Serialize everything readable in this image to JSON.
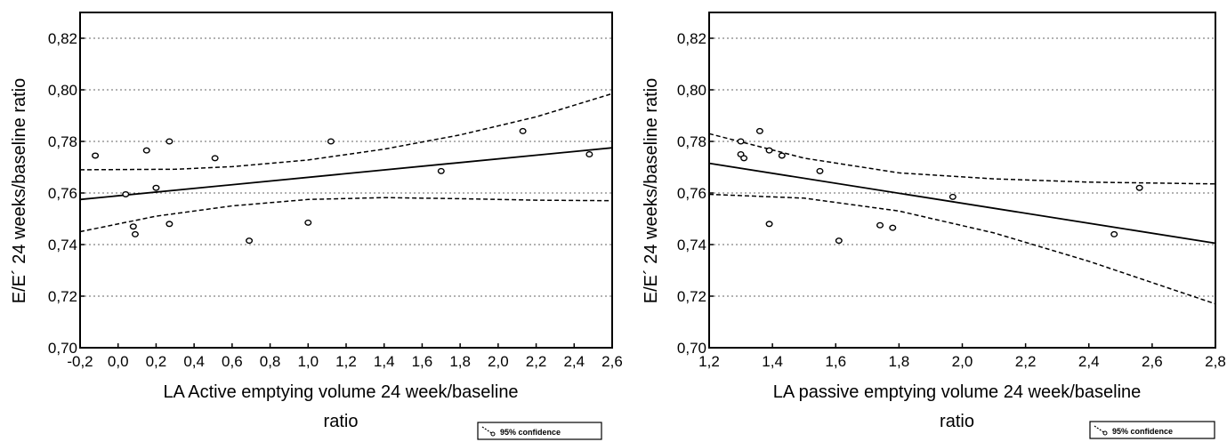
{
  "chart_data": [
    {
      "type": "scatter",
      "xlabel_line1": "LA Active emptying volume   24 week/baseline",
      "xlabel_line2": "ratio",
      "ylabel": "E/E´ 24 weeks/baseline ratio",
      "xlim": [
        -0.2,
        2.6
      ],
      "ylim": [
        0.7,
        0.83
      ],
      "x_ticks": [
        "-0,2",
        "0,0",
        "0,2",
        "0,4",
        "0,6",
        "0,8",
        "1,0",
        "1,2",
        "1,4",
        "1,6",
        "1,8",
        "2,0",
        "2,2",
        "2,4",
        "2,6"
      ],
      "x_tick_values": [
        -0.2,
        0.0,
        0.2,
        0.4,
        0.6,
        0.8,
        1.0,
        1.2,
        1.4,
        1.6,
        1.8,
        2.0,
        2.2,
        2.4,
        2.6
      ],
      "y_ticks": [
        "0,70",
        "0,72",
        "0,74",
        "0,76",
        "0,78",
        "0,80",
        "0,82"
      ],
      "y_tick_values": [
        0.7,
        0.72,
        0.74,
        0.76,
        0.78,
        0.8,
        0.82
      ],
      "grid": "horizontal-dotted",
      "legend": {
        "label": "95% confidence",
        "placement": "bottom-right"
      },
      "points": [
        {
          "x": -0.12,
          "y": 0.7745
        },
        {
          "x": 0.04,
          "y": 0.7595
        },
        {
          "x": 0.08,
          "y": 0.747
        },
        {
          "x": 0.09,
          "y": 0.744
        },
        {
          "x": 0.15,
          "y": 0.7765
        },
        {
          "x": 0.2,
          "y": 0.762
        },
        {
          "x": 0.27,
          "y": 0.78
        },
        {
          "x": 0.27,
          "y": 0.748
        },
        {
          "x": 0.51,
          "y": 0.7735
        },
        {
          "x": 0.69,
          "y": 0.7415
        },
        {
          "x": 1.0,
          "y": 0.7485
        },
        {
          "x": 1.12,
          "y": 0.78
        },
        {
          "x": 1.7,
          "y": 0.7685
        },
        {
          "x": 2.13,
          "y": 0.784
        },
        {
          "x": 2.48,
          "y": 0.775
        }
      ],
      "fit_line": [
        {
          "x": -0.2,
          "y": 0.7575
        },
        {
          "x": 2.6,
          "y": 0.7775
        }
      ],
      "ci_upper": [
        {
          "x": -0.2,
          "y": 0.769
        },
        {
          "x": 0.3,
          "y": 0.7692
        },
        {
          "x": 0.6,
          "y": 0.7702
        },
        {
          "x": 1.0,
          "y": 0.7728
        },
        {
          "x": 1.4,
          "y": 0.777
        },
        {
          "x": 1.8,
          "y": 0.7825
        },
        {
          "x": 2.2,
          "y": 0.7895
        },
        {
          "x": 2.6,
          "y": 0.7985
        }
      ],
      "ci_lower": [
        {
          "x": -0.2,
          "y": 0.745
        },
        {
          "x": 0.2,
          "y": 0.751
        },
        {
          "x": 0.6,
          "y": 0.755
        },
        {
          "x": 1.0,
          "y": 0.7575
        },
        {
          "x": 1.4,
          "y": 0.7582
        },
        {
          "x": 1.8,
          "y": 0.7578
        },
        {
          "x": 2.2,
          "y": 0.7572
        },
        {
          "x": 2.6,
          "y": 0.757
        }
      ]
    },
    {
      "type": "scatter",
      "xlabel_line1": "LA passive emptying volume  24 week/baseline",
      "xlabel_line2": "ratio",
      "ylabel": "E/E´ 24 weeks/baseline ratio",
      "xlim": [
        1.2,
        2.8
      ],
      "ylim": [
        0.7,
        0.83
      ],
      "x_ticks": [
        "1,2",
        "1,4",
        "1,6",
        "1,8",
        "2,0",
        "2,2",
        "2,4",
        "2,6",
        "2,8"
      ],
      "x_tick_values": [
        1.2,
        1.4,
        1.6,
        1.8,
        2.0,
        2.2,
        2.4,
        2.6,
        2.8
      ],
      "y_ticks": [
        "0,70",
        "0,72",
        "0,74",
        "0,76",
        "0,78",
        "0,80",
        "0,82"
      ],
      "y_tick_values": [
        0.7,
        0.72,
        0.74,
        0.76,
        0.78,
        0.8,
        0.82
      ],
      "grid": "horizontal-dotted",
      "legend": {
        "label": "95% confidence",
        "placement": "bottom-right"
      },
      "points": [
        {
          "x": 1.3,
          "y": 0.78
        },
        {
          "x": 1.3,
          "y": 0.775
        },
        {
          "x": 1.31,
          "y": 0.7735
        },
        {
          "x": 1.36,
          "y": 0.784
        },
        {
          "x": 1.39,
          "y": 0.7765
        },
        {
          "x": 1.39,
          "y": 0.748
        },
        {
          "x": 1.43,
          "y": 0.7745
        },
        {
          "x": 1.55,
          "y": 0.7685
        },
        {
          "x": 1.61,
          "y": 0.7415
        },
        {
          "x": 1.74,
          "y": 0.7475
        },
        {
          "x": 1.78,
          "y": 0.7465
        },
        {
          "x": 1.97,
          "y": 0.7585
        },
        {
          "x": 2.48,
          "y": 0.744
        },
        {
          "x": 2.56,
          "y": 0.762
        }
      ],
      "fit_line": [
        {
          "x": 1.2,
          "y": 0.7715
        },
        {
          "x": 2.8,
          "y": 0.7405
        }
      ],
      "ci_upper": [
        {
          "x": 1.2,
          "y": 0.783
        },
        {
          "x": 1.5,
          "y": 0.7735
        },
        {
          "x": 1.8,
          "y": 0.7678
        },
        {
          "x": 2.1,
          "y": 0.7655
        },
        {
          "x": 2.4,
          "y": 0.7642
        },
        {
          "x": 2.8,
          "y": 0.7635
        }
      ],
      "ci_lower": [
        {
          "x": 1.2,
          "y": 0.7595
        },
        {
          "x": 1.5,
          "y": 0.758
        },
        {
          "x": 1.8,
          "y": 0.753
        },
        {
          "x": 2.1,
          "y": 0.7445
        },
        {
          "x": 2.4,
          "y": 0.7335
        },
        {
          "x": 2.8,
          "y": 0.717
        }
      ]
    }
  ]
}
